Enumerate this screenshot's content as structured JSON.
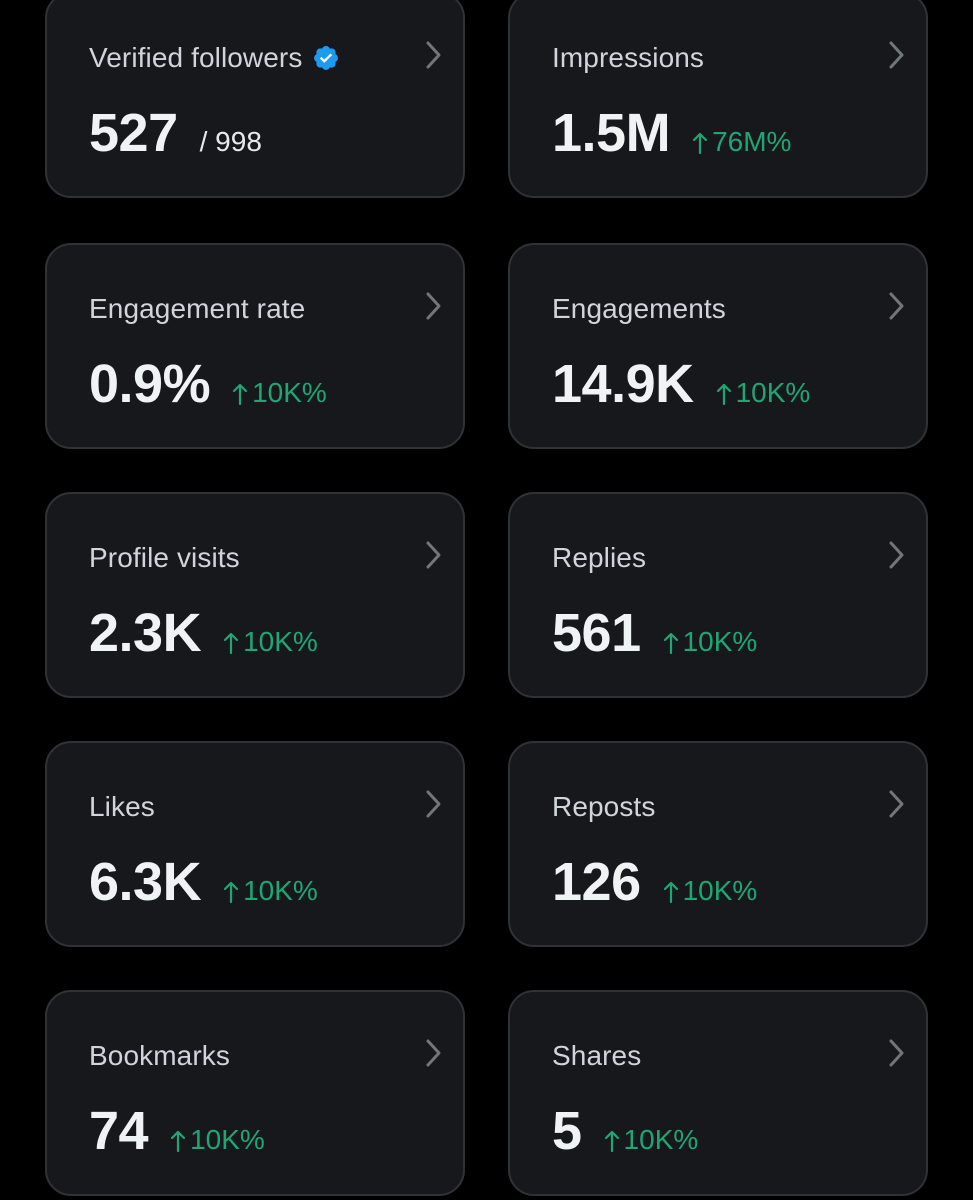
{
  "colors": {
    "background": "#000000",
    "card_background": "#16181c",
    "card_border": "#2f3336",
    "label_text": "#d1d5db",
    "value_text": "#eff3f4",
    "positive_change": "#1fa672",
    "verified_badge": "#1d9bf0"
  },
  "icons": {
    "chevron": "chevron-right-icon",
    "verified": "verified-badge-icon",
    "trend": "arrow-up-icon"
  },
  "cards": [
    {
      "label": "Verified followers",
      "value": "527",
      "sub": "/ 998",
      "change": "",
      "verified": true
    },
    {
      "label": "Impressions",
      "value": "1.5M",
      "sub": "",
      "change": "76M%",
      "verified": false
    },
    {
      "label": "Engagement rate",
      "value": "0.9%",
      "sub": "",
      "change": "10K%",
      "verified": false
    },
    {
      "label": "Engagements",
      "value": "14.9K",
      "sub": "",
      "change": "10K%",
      "verified": false
    },
    {
      "label": "Profile visits",
      "value": "2.3K",
      "sub": "",
      "change": "10K%",
      "verified": false
    },
    {
      "label": "Replies",
      "value": "561",
      "sub": "",
      "change": "10K%",
      "verified": false
    },
    {
      "label": "Likes",
      "value": "6.3K",
      "sub": "",
      "change": "10K%",
      "verified": false
    },
    {
      "label": "Reposts",
      "value": "126",
      "sub": "",
      "change": "10K%",
      "verified": false
    },
    {
      "label": "Bookmarks",
      "value": "74",
      "sub": "",
      "change": "10K%",
      "verified": false
    },
    {
      "label": "Shares",
      "value": "5",
      "sub": "",
      "change": "10K%",
      "verified": false
    }
  ]
}
